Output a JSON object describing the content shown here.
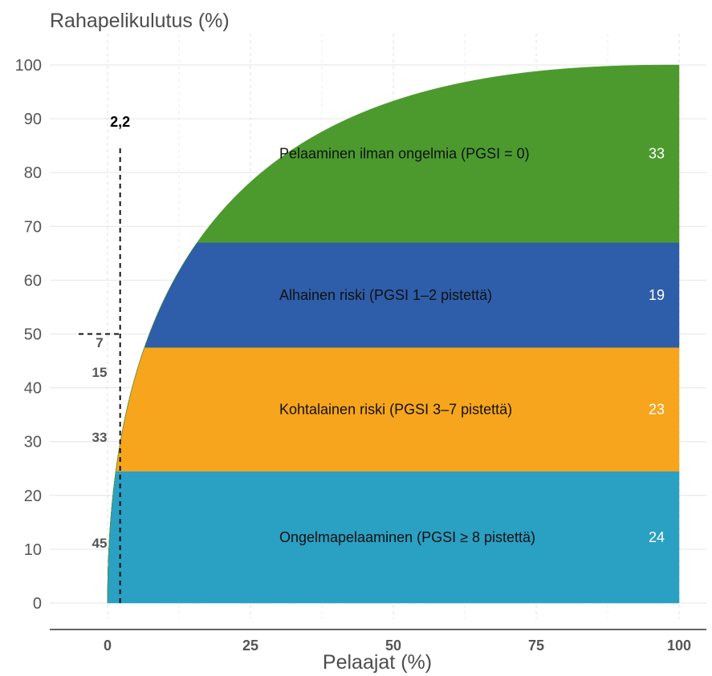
{
  "chart_data": {
    "type": "area",
    "ylabel": "Rahapelikulutus (%)",
    "xlabel": "Pelaajat (%)",
    "xlim": [
      0,
      100
    ],
    "ylim": [
      0,
      100
    ],
    "x_ticks": [
      "0",
      "25",
      "50",
      "75",
      "100"
    ],
    "y_ticks": [
      "0",
      "10",
      "20",
      "30",
      "40",
      "50",
      "60",
      "70",
      "80",
      "90",
      "100"
    ],
    "grid": true,
    "series": [
      {
        "name": "Ongelmapelaaminen (PGSI ≥ 8 pistettä)",
        "color": "#2aa0c3",
        "share": "24",
        "lower": 0,
        "upper": 24.5,
        "share_at_half_spending": "45"
      },
      {
        "name": "Kohtalainen riski (PGSI 3–7 pistettä)",
        "color": "#f7a51c",
        "share": "23",
        "lower": 24.5,
        "upper": 47.5,
        "share_at_half_spending": "33"
      },
      {
        "name": "Alhainen riski (PGSI 1–2 pistettä)",
        "color": "#2e5da9",
        "share": "19",
        "lower": 47.5,
        "upper": 67,
        "share_at_half_spending": "15"
      },
      {
        "name": "Pelaaminen ilman ongelmia (PGSI = 0)",
        "color": "#4c9a2e",
        "share": "33",
        "lower": 67,
        "upper": 100,
        "share_at_half_spending": "7"
      }
    ],
    "marker": {
      "label": "2,2",
      "x": 2.2,
      "y": 50
    }
  }
}
